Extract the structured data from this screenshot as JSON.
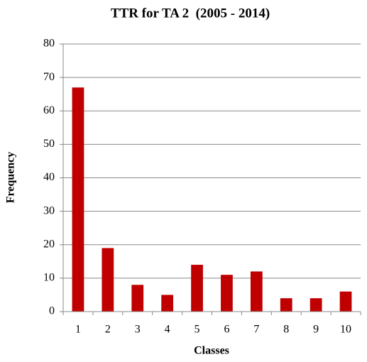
{
  "chart_data": {
    "type": "bar",
    "title": "TTR for TA 2  (2005 - 2014)",
    "x_label": "Classes",
    "y_label": "Frequency",
    "categories": [
      "1",
      "2",
      "3",
      "4",
      "5",
      "6",
      "7",
      "8",
      "9",
      "10"
    ],
    "values": [
      67,
      19,
      8,
      5,
      14,
      11,
      12,
      4,
      4,
      6
    ],
    "color": "#c00000",
    "ylim": [
      0,
      80
    ],
    "yticks": [
      0,
      10,
      20,
      30,
      40,
      50,
      60,
      70,
      80
    ],
    "grid": true
  }
}
